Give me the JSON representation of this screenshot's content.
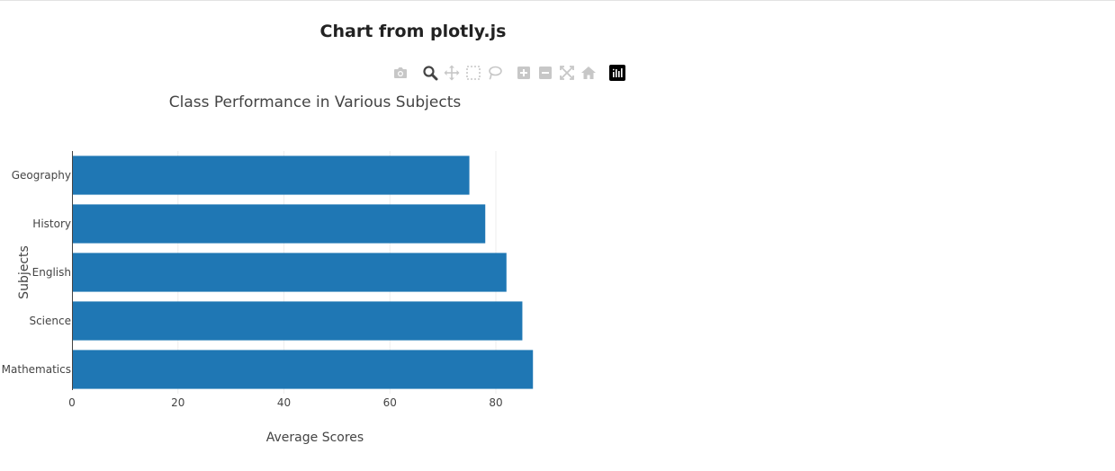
{
  "page": {
    "title": "Chart from plotly.js"
  },
  "modebar": {
    "buttons": [
      {
        "name": "camera-icon"
      },
      {
        "name": "zoom-icon"
      },
      {
        "name": "pan-icon"
      },
      {
        "name": "box-select-icon"
      },
      {
        "name": "lasso-select-icon"
      },
      {
        "name": "zoom-in-icon"
      },
      {
        "name": "zoom-out-icon"
      },
      {
        "name": "autoscale-icon"
      },
      {
        "name": "reset-axes-icon"
      },
      {
        "name": "plotly-logo-icon"
      }
    ],
    "colors": {
      "inactive": "#c7c7c7",
      "active": "#444444",
      "logo": "#000000"
    }
  },
  "chart_data": {
    "type": "bar",
    "orientation": "horizontal",
    "title": "Class Performance in Various Subjects",
    "xlabel": "Average Scores",
    "ylabel": "Subjects",
    "categories": [
      "Mathematics",
      "Science",
      "English",
      "History",
      "Geography"
    ],
    "values": [
      87,
      85,
      82,
      78,
      75
    ],
    "xlim": [
      0,
      89
    ],
    "xticks": [
      0,
      20,
      40,
      60,
      80
    ],
    "grid": true,
    "bar_color": "#1f77b4"
  }
}
